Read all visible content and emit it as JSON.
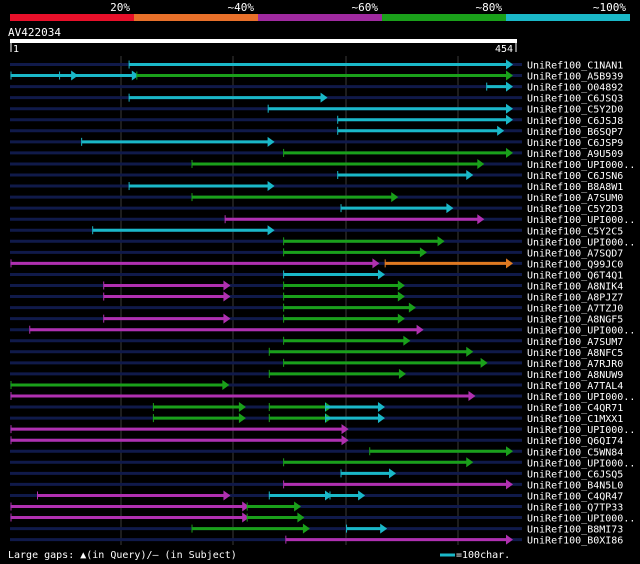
{
  "legend": {
    "scale": [
      {
        "label": "20%",
        "color": "#e8102a"
      },
      {
        "label": "~40%",
        "color": "#e8702a"
      },
      {
        "label": "~60%",
        "color": "#a02aa0"
      },
      {
        "label": "~80%",
        "color": "#1aa01a"
      },
      {
        "label": "~100%",
        "color": "#1ab8c8"
      }
    ]
  },
  "query": {
    "id": "AV422034",
    "length": 454,
    "ruler_start": "1",
    "ruler_end": "454"
  },
  "colors": {
    "teal": "#1ab8c8",
    "green": "#1aa01a",
    "purple": "#b030b0",
    "orange": "#e07a20",
    "row_line": "#101a4a",
    "grid": "#3a3a3a"
  },
  "hits": [
    {
      "name": "UniRef100_C1NAN1",
      "segs": [
        [
          108,
          454,
          "teal"
        ]
      ]
    },
    {
      "name": "UniRef100_A5B939",
      "segs": [
        [
          1,
          60,
          "teal"
        ],
        [
          45,
          115,
          "teal"
        ],
        [
          115,
          454,
          "green"
        ]
      ]
    },
    {
      "name": "UniRef100_O04892",
      "segs": [
        [
          432,
          454,
          "teal"
        ]
      ]
    },
    {
      "name": "UniRef100_C6JSQ3",
      "segs": [
        [
          108,
          286,
          "teal"
        ]
      ]
    },
    {
      "name": "UniRef100_C5Y2D0",
      "segs": [
        [
          234,
          454,
          "teal"
        ]
      ]
    },
    {
      "name": "UniRef100_C6JSJ8",
      "segs": [
        [
          297,
          454,
          "teal"
        ]
      ]
    },
    {
      "name": "UniRef100_B6SQP7",
      "segs": [
        [
          297,
          446,
          "teal"
        ]
      ]
    },
    {
      "name": "UniRef100_C6JSP9",
      "segs": [
        [
          65,
          238,
          "teal"
        ]
      ]
    },
    {
      "name": "UniRef100_A9U509",
      "segs": [
        [
          248,
          454,
          "green"
        ]
      ]
    },
    {
      "name": "UniRef100_UPI000..",
      "segs": [
        [
          165,
          428,
          "green"
        ]
      ]
    },
    {
      "name": "UniRef100_C6JSN6",
      "segs": [
        [
          297,
          418,
          "teal"
        ]
      ]
    },
    {
      "name": "UniRef100_B8A8W1",
      "segs": [
        [
          108,
          238,
          "teal"
        ]
      ]
    },
    {
      "name": "UniRef100_A7SUM0",
      "segs": [
        [
          165,
          350,
          "green"
        ]
      ]
    },
    {
      "name": "UniRef100_C5Y2D3",
      "segs": [
        [
          300,
          400,
          "teal"
        ]
      ]
    },
    {
      "name": "UniRef100_UPI000..",
      "segs": [
        [
          195,
          428,
          "purple"
        ]
      ]
    },
    {
      "name": "UniRef100_C5Y2C5",
      "segs": [
        [
          75,
          238,
          "teal"
        ]
      ]
    },
    {
      "name": "UniRef100_UPI000..",
      "segs": [
        [
          248,
          392,
          "green"
        ]
      ]
    },
    {
      "name": "UniRef100_A7SQD7",
      "segs": [
        [
          248,
          376,
          "green"
        ]
      ]
    },
    {
      "name": "UniRef100_Q99JC0",
      "segs": [
        [
          1,
          333,
          "purple"
        ],
        [
          340,
          454,
          "orange"
        ]
      ]
    },
    {
      "name": "UniRef100_Q6T4Q1",
      "segs": [
        [
          248,
          338,
          "teal"
        ]
      ]
    },
    {
      "name": "UniRef100_A8NIK4",
      "segs": [
        [
          85,
          198,
          "purple"
        ],
        [
          248,
          356,
          "green"
        ]
      ]
    },
    {
      "name": "UniRef100_A8PJZ7",
      "segs": [
        [
          85,
          198,
          "purple"
        ],
        [
          248,
          356,
          "green"
        ]
      ]
    },
    {
      "name": "UniRef100_A7TZJ0",
      "segs": [
        [
          248,
          366,
          "green"
        ]
      ]
    },
    {
      "name": "UniRef100_A8NGF5",
      "segs": [
        [
          85,
          198,
          "purple"
        ],
        [
          248,
          356,
          "green"
        ]
      ]
    },
    {
      "name": "UniRef100_UPI000..",
      "segs": [
        [
          18,
          373,
          "purple"
        ]
      ]
    },
    {
      "name": "UniRef100_A7SUM7",
      "segs": [
        [
          248,
          361,
          "green"
        ]
      ]
    },
    {
      "name": "UniRef100_A8NFC5",
      "segs": [
        [
          235,
          418,
          "green"
        ]
      ]
    },
    {
      "name": "UniRef100_A7RJR0",
      "segs": [
        [
          248,
          431,
          "green"
        ]
      ]
    },
    {
      "name": "UniRef100_A8NUW9",
      "segs": [
        [
          235,
          357,
          "green"
        ]
      ]
    },
    {
      "name": "UniRef100_A7TAL4",
      "segs": [
        [
          1,
          197,
          "green"
        ]
      ]
    },
    {
      "name": "UniRef100_UPI000..",
      "segs": [
        [
          1,
          420,
          "purple"
        ]
      ]
    },
    {
      "name": "UniRef100_C4QR71",
      "segs": [
        [
          130,
          212,
          "green"
        ],
        [
          235,
          290,
          "green"
        ],
        [
          286,
          338,
          "teal"
        ]
      ]
    },
    {
      "name": "UniRef100_C1MXX1",
      "segs": [
        [
          130,
          212,
          "green"
        ],
        [
          235,
          290,
          "green"
        ],
        [
          286,
          338,
          "teal"
        ]
      ]
    },
    {
      "name": "UniRef100_UPI000..",
      "segs": [
        [
          1,
          305,
          "purple"
        ]
      ]
    },
    {
      "name": "UniRef100_Q6QI74",
      "segs": [
        [
          1,
          305,
          "purple"
        ]
      ]
    },
    {
      "name": "UniRef100_C5WN84",
      "segs": [
        [
          326,
          454,
          "green"
        ]
      ]
    },
    {
      "name": "UniRef100_UPI000..",
      "segs": [
        [
          248,
          418,
          "green"
        ]
      ]
    },
    {
      "name": "UniRef100_C6JSQ5",
      "segs": [
        [
          300,
          348,
          "teal"
        ]
      ]
    },
    {
      "name": "UniRef100_B4N5L0",
      "segs": [
        [
          248,
          454,
          "purple"
        ]
      ]
    },
    {
      "name": "UniRef100_C4QR47",
      "segs": [
        [
          25,
          198,
          "purple"
        ],
        [
          235,
          290,
          "teal"
        ],
        [
          290,
          320,
          "teal"
        ]
      ]
    },
    {
      "name": "UniRef100_Q7TP33",
      "segs": [
        [
          1,
          215,
          "purple"
        ],
        [
          215,
          262,
          "green"
        ]
      ]
    },
    {
      "name": "UniRef100_UPI000..",
      "segs": [
        [
          1,
          215,
          "purple"
        ],
        [
          215,
          265,
          "green"
        ]
      ]
    },
    {
      "name": "UniRef100_B8MI73",
      "segs": [
        [
          165,
          270,
          "green"
        ],
        [
          305,
          340,
          "teal"
        ]
      ]
    },
    {
      "name": "UniRef100_B0XI86",
      "segs": [
        [
          250,
          454,
          "purple"
        ]
      ]
    }
  ],
  "footer": {
    "gaps_label": "Large gaps: ▲(in Query)/– (in Subject)",
    "scale_label": "=100char."
  }
}
